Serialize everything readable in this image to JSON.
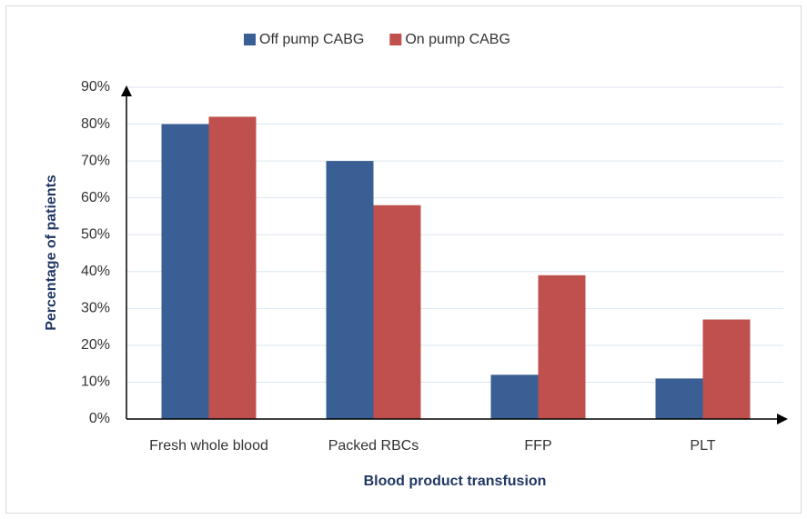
{
  "chart_data": {
    "type": "bar",
    "x_label": "Blood product transfusion",
    "y_label": "Percentage of patients",
    "categories": [
      "Fresh whole blood",
      "Packed RBCs",
      "FFP",
      "PLT"
    ],
    "series": [
      {
        "name": "Off pump CABG",
        "color": "#3a5f94",
        "values": [
          80,
          70,
          12,
          11
        ]
      },
      {
        "name": "On pump CABG",
        "color": "#c0504d",
        "values": [
          82,
          58,
          39,
          27
        ]
      }
    ],
    "ylim": [
      0,
      90
    ],
    "yticks": [
      {
        "value": 0,
        "label": "0%"
      },
      {
        "value": 10,
        "label": "10%"
      },
      {
        "value": 20,
        "label": "20%"
      },
      {
        "value": 30,
        "label": "30%"
      },
      {
        "value": 40,
        "label": "40%"
      },
      {
        "value": 50,
        "label": "50%"
      },
      {
        "value": 60,
        "label": "60%"
      },
      {
        "value": 70,
        "label": "70%"
      },
      {
        "value": 80,
        "label": "80%"
      },
      {
        "value": 90,
        "label": "90%"
      }
    ],
    "grid": true,
    "legend": "top"
  }
}
